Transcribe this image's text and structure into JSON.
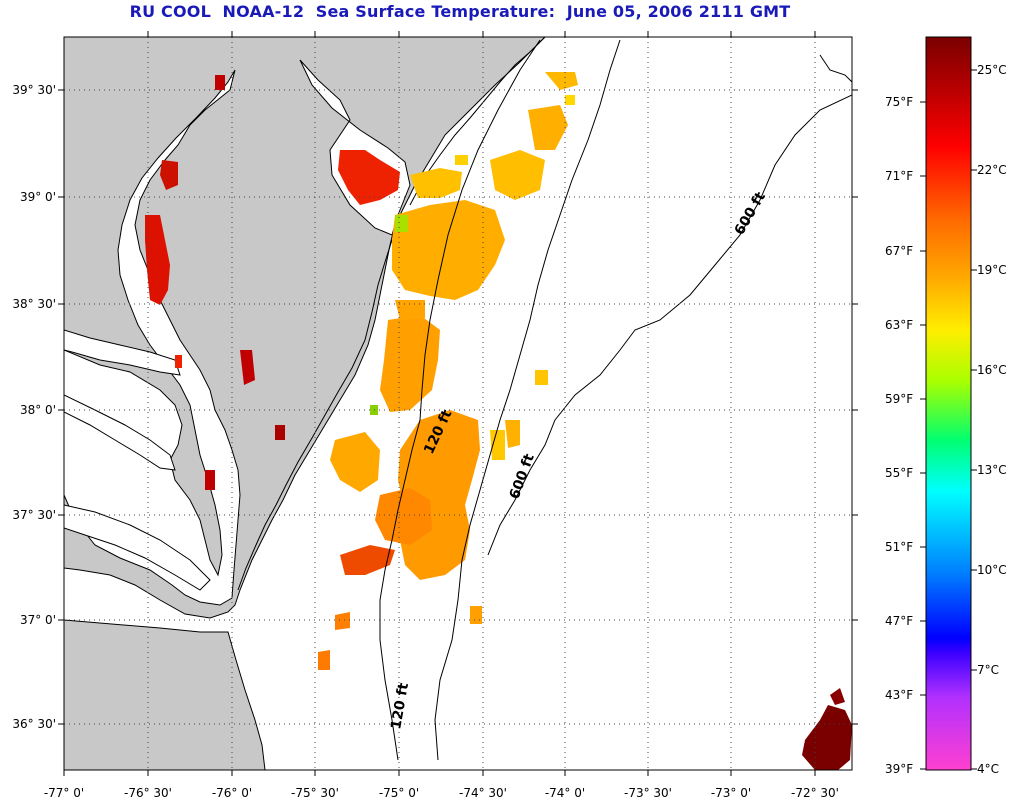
{
  "title": "RU COOL  NOAA-12  Sea Surface Temperature:  June 05, 2006 2111 GMT",
  "map": {
    "lat_labels": [
      "39° 30'",
      "39° 0'",
      "38° 30'",
      "38° 0'",
      "37° 30'",
      "37° 0'",
      "36° 30'"
    ],
    "lon_labels": [
      "-77° 0'",
      "-76° 30'",
      "-76° 0'",
      "-75° 30'",
      "-75° 0'",
      "-74° 30'",
      "-74° 0'",
      "-73° 30'",
      "-73° 0'",
      "-72° 30'"
    ],
    "contours": {
      "c120_upper": "120 ft",
      "c120_lower": "120 ft",
      "c600_upper": "600 ft",
      "c600_lower": "600 ft"
    },
    "colors": {
      "land": "#c8c8c8",
      "water": "#ffffff",
      "coast": "#000000",
      "sst_warm": "#ee2200",
      "sst_orange": "#ff8c00",
      "sst_yellow": "#ffd200"
    }
  },
  "colorbar": {
    "fahrenheit_labels": [
      "75°F",
      "71°F",
      "67°F",
      "63°F",
      "59°F",
      "55°F",
      "51°F",
      "47°F",
      "43°F",
      "39°F"
    ],
    "celsius_labels": [
      "25°C",
      "22°C",
      "19°C",
      "16°C",
      "13°C",
      "10°C",
      "7°C",
      "4°C"
    ]
  }
}
